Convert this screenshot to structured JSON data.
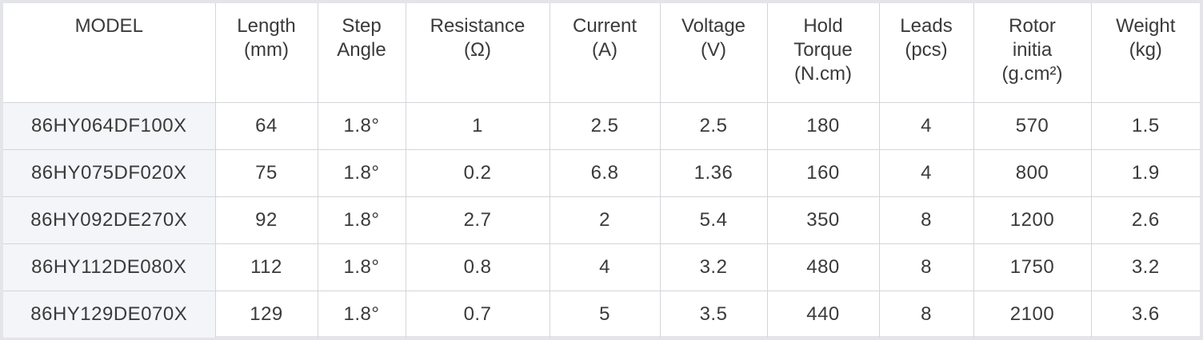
{
  "table": {
    "headers": [
      {
        "key": "model",
        "lines": [
          "MODEL"
        ]
      },
      {
        "key": "length",
        "lines": [
          "Length",
          "(mm)"
        ]
      },
      {
        "key": "step_angle",
        "lines": [
          "Step",
          "Angle"
        ]
      },
      {
        "key": "resistance",
        "lines": [
          "Resistance",
          "(Ω)"
        ]
      },
      {
        "key": "current",
        "lines": [
          "Current",
          "(A)"
        ]
      },
      {
        "key": "voltage",
        "lines": [
          "Voltage",
          "(V)"
        ]
      },
      {
        "key": "hold_torque",
        "lines": [
          "Hold",
          "Torque",
          "(N.cm)"
        ]
      },
      {
        "key": "leads",
        "lines": [
          "Leads",
          "(pcs)"
        ]
      },
      {
        "key": "rotor_inertia",
        "lines": [
          "Rotor",
          "initia",
          "(g.cm²)"
        ]
      },
      {
        "key": "weight",
        "lines": [
          "Weight",
          "(kg)"
        ]
      }
    ],
    "rows": [
      [
        "86HY064DF100X",
        "64",
        "1.8°",
        "1",
        "2.5",
        "2.5",
        "180",
        "4",
        "570",
        "1.5"
      ],
      [
        "86HY075DF020X",
        "75",
        "1.8°",
        "0.2",
        "6.8",
        "1.36",
        "160",
        "4",
        "800",
        "1.9"
      ],
      [
        "86HY092DE270X",
        "92",
        "1.8°",
        "2.7",
        "2",
        "5.4",
        "350",
        "8",
        "1200",
        "2.6"
      ],
      [
        "86HY112DE080X",
        "112",
        "1.8°",
        "0.8",
        "4",
        "3.2",
        "480",
        "8",
        "1750",
        "3.2"
      ],
      [
        "86HY129DE070X",
        "129",
        "1.8°",
        "0.7",
        "5",
        "3.5",
        "440",
        "8",
        "2100",
        "3.6"
      ]
    ]
  },
  "colors": {
    "text": "#3a3a3a",
    "border": "#d3d5da",
    "frame": "#e4e5e8",
    "model_cell_bg": "#f4f5f8"
  }
}
